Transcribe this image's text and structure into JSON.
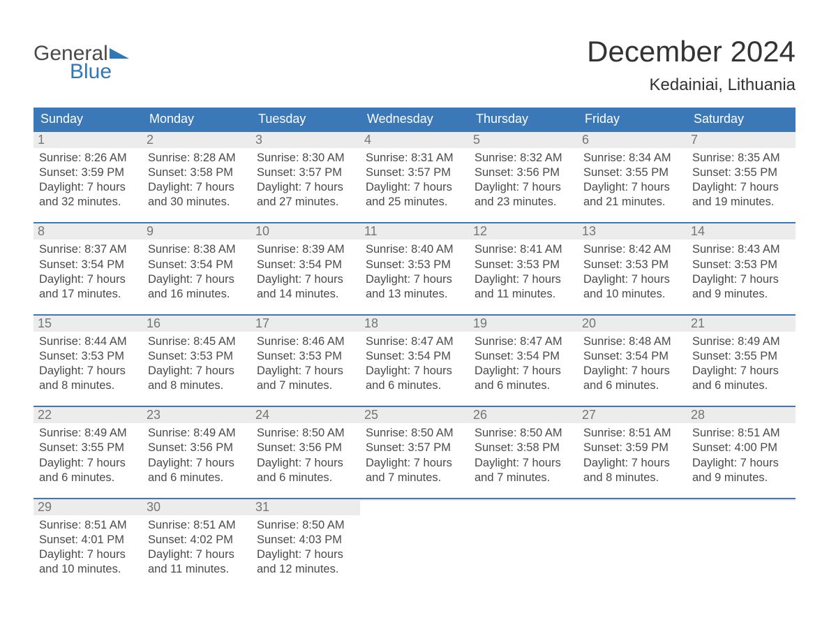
{
  "logo": {
    "general": "General",
    "blue": "Blue"
  },
  "title": "December 2024",
  "location": "Kedainiai, Lithuania",
  "colors": {
    "header_bg": "#3b78b8",
    "header_text": "#ffffff",
    "daynum_bg": "#ececec",
    "daynum_text": "#757575",
    "body_text": "#4a4a4a",
    "logo_gray": "#4a4a4a",
    "logo_blue": "#2f77b8",
    "title_text": "#333333",
    "week_border": "#3b78b8",
    "page_bg": "#ffffff"
  },
  "dow": [
    "Sunday",
    "Monday",
    "Tuesday",
    "Wednesday",
    "Thursday",
    "Friday",
    "Saturday"
  ],
  "weeks": [
    [
      {
        "n": "1",
        "sr": "Sunrise: 8:26 AM",
        "ss": "Sunset: 3:59 PM",
        "d1": "Daylight: 7 hours",
        "d2": "and 32 minutes."
      },
      {
        "n": "2",
        "sr": "Sunrise: 8:28 AM",
        "ss": "Sunset: 3:58 PM",
        "d1": "Daylight: 7 hours",
        "d2": "and 30 minutes."
      },
      {
        "n": "3",
        "sr": "Sunrise: 8:30 AM",
        "ss": "Sunset: 3:57 PM",
        "d1": "Daylight: 7 hours",
        "d2": "and 27 minutes."
      },
      {
        "n": "4",
        "sr": "Sunrise: 8:31 AM",
        "ss": "Sunset: 3:57 PM",
        "d1": "Daylight: 7 hours",
        "d2": "and 25 minutes."
      },
      {
        "n": "5",
        "sr": "Sunrise: 8:32 AM",
        "ss": "Sunset: 3:56 PM",
        "d1": "Daylight: 7 hours",
        "d2": "and 23 minutes."
      },
      {
        "n": "6",
        "sr": "Sunrise: 8:34 AM",
        "ss": "Sunset: 3:55 PM",
        "d1": "Daylight: 7 hours",
        "d2": "and 21 minutes."
      },
      {
        "n": "7",
        "sr": "Sunrise: 8:35 AM",
        "ss": "Sunset: 3:55 PM",
        "d1": "Daylight: 7 hours",
        "d2": "and 19 minutes."
      }
    ],
    [
      {
        "n": "8",
        "sr": "Sunrise: 8:37 AM",
        "ss": "Sunset: 3:54 PM",
        "d1": "Daylight: 7 hours",
        "d2": "and 17 minutes."
      },
      {
        "n": "9",
        "sr": "Sunrise: 8:38 AM",
        "ss": "Sunset: 3:54 PM",
        "d1": "Daylight: 7 hours",
        "d2": "and 16 minutes."
      },
      {
        "n": "10",
        "sr": "Sunrise: 8:39 AM",
        "ss": "Sunset: 3:54 PM",
        "d1": "Daylight: 7 hours",
        "d2": "and 14 minutes."
      },
      {
        "n": "11",
        "sr": "Sunrise: 8:40 AM",
        "ss": "Sunset: 3:53 PM",
        "d1": "Daylight: 7 hours",
        "d2": "and 13 minutes."
      },
      {
        "n": "12",
        "sr": "Sunrise: 8:41 AM",
        "ss": "Sunset: 3:53 PM",
        "d1": "Daylight: 7 hours",
        "d2": "and 11 minutes."
      },
      {
        "n": "13",
        "sr": "Sunrise: 8:42 AM",
        "ss": "Sunset: 3:53 PM",
        "d1": "Daylight: 7 hours",
        "d2": "and 10 minutes."
      },
      {
        "n": "14",
        "sr": "Sunrise: 8:43 AM",
        "ss": "Sunset: 3:53 PM",
        "d1": "Daylight: 7 hours",
        "d2": "and 9 minutes."
      }
    ],
    [
      {
        "n": "15",
        "sr": "Sunrise: 8:44 AM",
        "ss": "Sunset: 3:53 PM",
        "d1": "Daylight: 7 hours",
        "d2": "and 8 minutes."
      },
      {
        "n": "16",
        "sr": "Sunrise: 8:45 AM",
        "ss": "Sunset: 3:53 PM",
        "d1": "Daylight: 7 hours",
        "d2": "and 8 minutes."
      },
      {
        "n": "17",
        "sr": "Sunrise: 8:46 AM",
        "ss": "Sunset: 3:53 PM",
        "d1": "Daylight: 7 hours",
        "d2": "and 7 minutes."
      },
      {
        "n": "18",
        "sr": "Sunrise: 8:47 AM",
        "ss": "Sunset: 3:54 PM",
        "d1": "Daylight: 7 hours",
        "d2": "and 6 minutes."
      },
      {
        "n": "19",
        "sr": "Sunrise: 8:47 AM",
        "ss": "Sunset: 3:54 PM",
        "d1": "Daylight: 7 hours",
        "d2": "and 6 minutes."
      },
      {
        "n": "20",
        "sr": "Sunrise: 8:48 AM",
        "ss": "Sunset: 3:54 PM",
        "d1": "Daylight: 7 hours",
        "d2": "and 6 minutes."
      },
      {
        "n": "21",
        "sr": "Sunrise: 8:49 AM",
        "ss": "Sunset: 3:55 PM",
        "d1": "Daylight: 7 hours",
        "d2": "and 6 minutes."
      }
    ],
    [
      {
        "n": "22",
        "sr": "Sunrise: 8:49 AM",
        "ss": "Sunset: 3:55 PM",
        "d1": "Daylight: 7 hours",
        "d2": "and 6 minutes."
      },
      {
        "n": "23",
        "sr": "Sunrise: 8:49 AM",
        "ss": "Sunset: 3:56 PM",
        "d1": "Daylight: 7 hours",
        "d2": "and 6 minutes."
      },
      {
        "n": "24",
        "sr": "Sunrise: 8:50 AM",
        "ss": "Sunset: 3:56 PM",
        "d1": "Daylight: 7 hours",
        "d2": "and 6 minutes."
      },
      {
        "n": "25",
        "sr": "Sunrise: 8:50 AM",
        "ss": "Sunset: 3:57 PM",
        "d1": "Daylight: 7 hours",
        "d2": "and 7 minutes."
      },
      {
        "n": "26",
        "sr": "Sunrise: 8:50 AM",
        "ss": "Sunset: 3:58 PM",
        "d1": "Daylight: 7 hours",
        "d2": "and 7 minutes."
      },
      {
        "n": "27",
        "sr": "Sunrise: 8:51 AM",
        "ss": "Sunset: 3:59 PM",
        "d1": "Daylight: 7 hours",
        "d2": "and 8 minutes."
      },
      {
        "n": "28",
        "sr": "Sunrise: 8:51 AM",
        "ss": "Sunset: 4:00 PM",
        "d1": "Daylight: 7 hours",
        "d2": "and 9 minutes."
      }
    ],
    [
      {
        "n": "29",
        "sr": "Sunrise: 8:51 AM",
        "ss": "Sunset: 4:01 PM",
        "d1": "Daylight: 7 hours",
        "d2": "and 10 minutes."
      },
      {
        "n": "30",
        "sr": "Sunrise: 8:51 AM",
        "ss": "Sunset: 4:02 PM",
        "d1": "Daylight: 7 hours",
        "d2": "and 11 minutes."
      },
      {
        "n": "31",
        "sr": "Sunrise: 8:50 AM",
        "ss": "Sunset: 4:03 PM",
        "d1": "Daylight: 7 hours",
        "d2": "and 12 minutes."
      },
      {
        "empty": true
      },
      {
        "empty": true
      },
      {
        "empty": true
      },
      {
        "empty": true
      }
    ]
  ]
}
